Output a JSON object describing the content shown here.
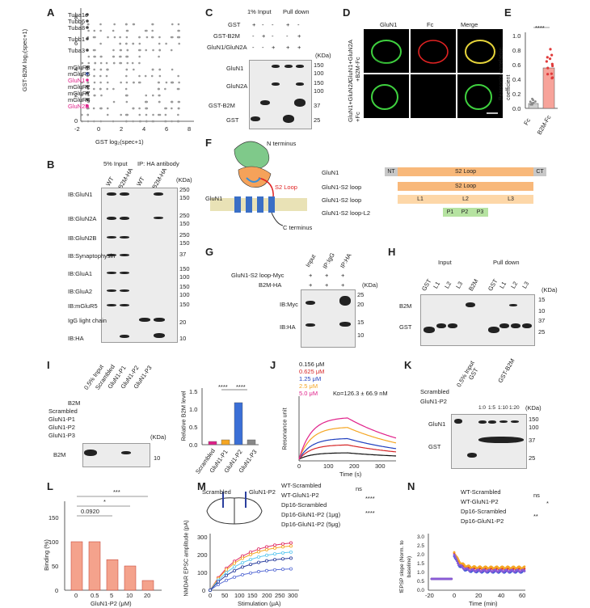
{
  "panels": {
    "A": "A",
    "B": "B",
    "C": "C",
    "D": "D",
    "E": "E",
    "F": "F",
    "G": "G",
    "H": "H",
    "I": "I",
    "J": "J",
    "K": "K",
    "L": "L",
    "M": "M",
    "N": "N"
  },
  "A": {
    "ylabel": "GST-B2M log₂(spec+1)",
    "xlabel": "GST log₂(spec+1)",
    "labels": [
      "Tuba1c",
      "Tubb6",
      "Tuba8",
      "Tubb1",
      "Tuba3",
      "mGluR3",
      "mGluR5",
      "GluN1",
      "mGluR2",
      "mGluR7",
      "mGluR4",
      "GluN2B"
    ],
    "xticks": [
      "-2",
      "0",
      "2",
      "4",
      "6",
      "8"
    ],
    "yticks": [
      "0",
      "2",
      "4",
      "6",
      "8"
    ],
    "highlight_color": "#e0218a",
    "blue": "#3a5fcd"
  },
  "B": {
    "head_input": "5% Input",
    "head_ip": "IP: HA antibody",
    "lanes": [
      "WT",
      "hB2M-HA",
      "WT",
      "hB2M-HA"
    ],
    "kda": "(KDa)",
    "rows": [
      "IB:GluN1",
      "IB:GluN2A",
      "IB:GluN2B",
      "IB:Synaptophysin",
      "IB:GluA1",
      "IB:GluA2",
      "IB:mGluR5",
      "IgG light chain",
      "IB:HA"
    ],
    "markers": [
      "250",
      "150",
      "250",
      "150",
      "250",
      "150",
      "37",
      "150",
      "100",
      "150",
      "100",
      "150",
      "20",
      "10"
    ]
  },
  "C": {
    "head_input": "1% Input",
    "head_pd": "Pull down",
    "rows_label": [
      "GST",
      "GST-B2M",
      "GluN1/GluN2A"
    ],
    "sign_rows": [
      [
        "+",
        "-",
        "-",
        "+",
        "-"
      ],
      [
        "-",
        "+",
        "-",
        "-",
        "+"
      ],
      [
        "-",
        "-",
        "+",
        "+",
        "+"
      ]
    ],
    "kda": "(KDa)",
    "blots": [
      "GluN1",
      "GluN2A",
      "GST-B2M",
      "GST"
    ],
    "markers": [
      "150",
      "100",
      "150",
      "100",
      "37",
      "25"
    ]
  },
  "D": {
    "cols": [
      "GluN1",
      "Fc",
      "Merge"
    ],
    "rows": [
      "GluN1+GluN2A +B2M-Fc",
      "GluN1+GluN2A +Fc"
    ]
  },
  "E": {
    "ylabel": "Pearson's correlation coefficient",
    "sig": "****",
    "categories": [
      "Fc",
      "B2M-Fc"
    ],
    "yticks": [
      "0.0",
      "0.2",
      "0.4",
      "0.6",
      "0.8",
      "1.0"
    ]
  },
  "F": {
    "nterm": "N terminus",
    "cterm": "C terminus",
    "s2": "S2 Loop",
    "glun1": "GluN1",
    "constructs": [
      "GluN1",
      "GluN1-S2 loop",
      "GluN1-S2 loop",
      "GluN1-S2 loop-L2"
    ],
    "nt": "NT",
    "ct": "CT",
    "loop": "S2 Loop",
    "l1": "L1",
    "l2": "L2",
    "l3": "L3",
    "p1": "P1",
    "p2": "P2",
    "p3": "P3"
  },
  "G": {
    "lanes": [
      "Input",
      "IP:IgG",
      "IP:HA"
    ],
    "rows": [
      "GluN1-S2 loop-Myc",
      "B2M-HA"
    ],
    "signs": [
      [
        "+",
        "+",
        "+"
      ],
      [
        "+",
        "+",
        "+"
      ]
    ],
    "kda": "(KDa)",
    "blots": [
      "IB:Myc",
      "IB:HA"
    ],
    "markers": [
      "25",
      "20",
      "15",
      "10"
    ]
  },
  "H": {
    "head_input": "Input",
    "head_pd": "Pull down",
    "lanes": [
      "GST",
      "L1",
      "L2",
      "L3",
      "B2M",
      "GST",
      "L1",
      "L2",
      "L3"
    ],
    "blots": [
      "B2M",
      "GST"
    ],
    "kda": "(KDa)",
    "markers": [
      "15",
      "10",
      "37",
      "25"
    ]
  },
  "I": {
    "lanes": [
      "0.5% Input",
      "Scrambled",
      "GluN1-P1",
      "GluN1-P2",
      "GluN1-P3"
    ],
    "rows": [
      "B2M",
      "Scrambled",
      "GluN1-P1",
      "GluN1-P2",
      "GluN1-P3"
    ],
    "kda": "(KDa)",
    "blot": "B2M",
    "marker": "10",
    "bar_ylabel": "Relative B2M level",
    "sig": "****",
    "bar_cats": [
      "Scrambled",
      "GluN1-P1",
      "GluN1-P2",
      "GluN1-P3"
    ],
    "bar_yticks": [
      "0.0",
      "0.5",
      "1.0",
      "1.5"
    ]
  },
  "J": {
    "legend": [
      "0.156 μM",
      "0.625 μM",
      "1.25 μM",
      "2.5 μM",
      "5.0 μM"
    ],
    "kd": "Kᴅ=126.3 ± 66.9 nM",
    "ylabel": "Resonance unit",
    "xlabel": "Time (s)",
    "xticks": [
      "0",
      "100",
      "200",
      "300"
    ],
    "colors": [
      "#111111",
      "#d62728",
      "#1f3fbf",
      "#f5a623",
      "#e0218a"
    ]
  },
  "K": {
    "head_input": "0.5% Input",
    "head_gst": "GST",
    "head_gstb2m": "GST-B2M",
    "row1": "Scrambled",
    "row2": "GluN1-P2",
    "ratios": [
      "1:0",
      "1:5",
      "1:10",
      "1:20"
    ],
    "kda": "(KDa)",
    "blots": [
      "GluN1",
      "GST"
    ],
    "markers": [
      "150",
      "100",
      "37",
      "25"
    ]
  },
  "L": {
    "ylabel": "Binding (%)",
    "xlabel": "GluN1-P2 (μM)",
    "sig": [
      "***",
      "*",
      "0.0920"
    ],
    "xticks": [
      "0",
      "0.5",
      "5",
      "10",
      "20"
    ],
    "yticks": [
      "0",
      "50",
      "100",
      "150"
    ]
  },
  "M": {
    "scr": "Scrambled",
    "p2": "GluN1-P2",
    "legend": [
      "WT-Scrambled",
      "WT-GluN1-P2",
      "Dp16-Scrambled",
      "Dp16-GluN1-P2 (1μg)",
      "Dp16-GluN1-P2 (5μg)"
    ],
    "ns": "ns",
    "sig": "****",
    "ylabel": "NMDAR EPSC amplitude (pA)",
    "xlabel": "Stimulation (μA)",
    "xticks": [
      "0",
      "50",
      "100",
      "150",
      "200",
      "250",
      "300"
    ],
    "yticks": [
      "0",
      "100",
      "200",
      "300"
    ],
    "colors": [
      "#e02f6a",
      "#f5a623",
      "#5b6fd6",
      "#5ec8f0",
      "#2b3f9e"
    ]
  },
  "N": {
    "legend": [
      "WT-Scrambled",
      "WT-GluN1-P2",
      "Dp16-Scrambled",
      "Dp16-GluN1-P2"
    ],
    "ns": "ns",
    "sig1": "*",
    "sig2": "**",
    "ylabel": "fEPSP slope (Norm. to baseline)",
    "xlabel": "Time (min)",
    "xticks": [
      "-20",
      "0",
      "20",
      "40",
      "60"
    ],
    "yticks": [
      "0.0",
      "0.5",
      "1.0",
      "1.5",
      "2.0",
      "2.5",
      "3.0"
    ],
    "colors": [
      "#e0312a",
      "#f5a623",
      "#3b5bd6",
      "#8a5ad6"
    ]
  }
}
